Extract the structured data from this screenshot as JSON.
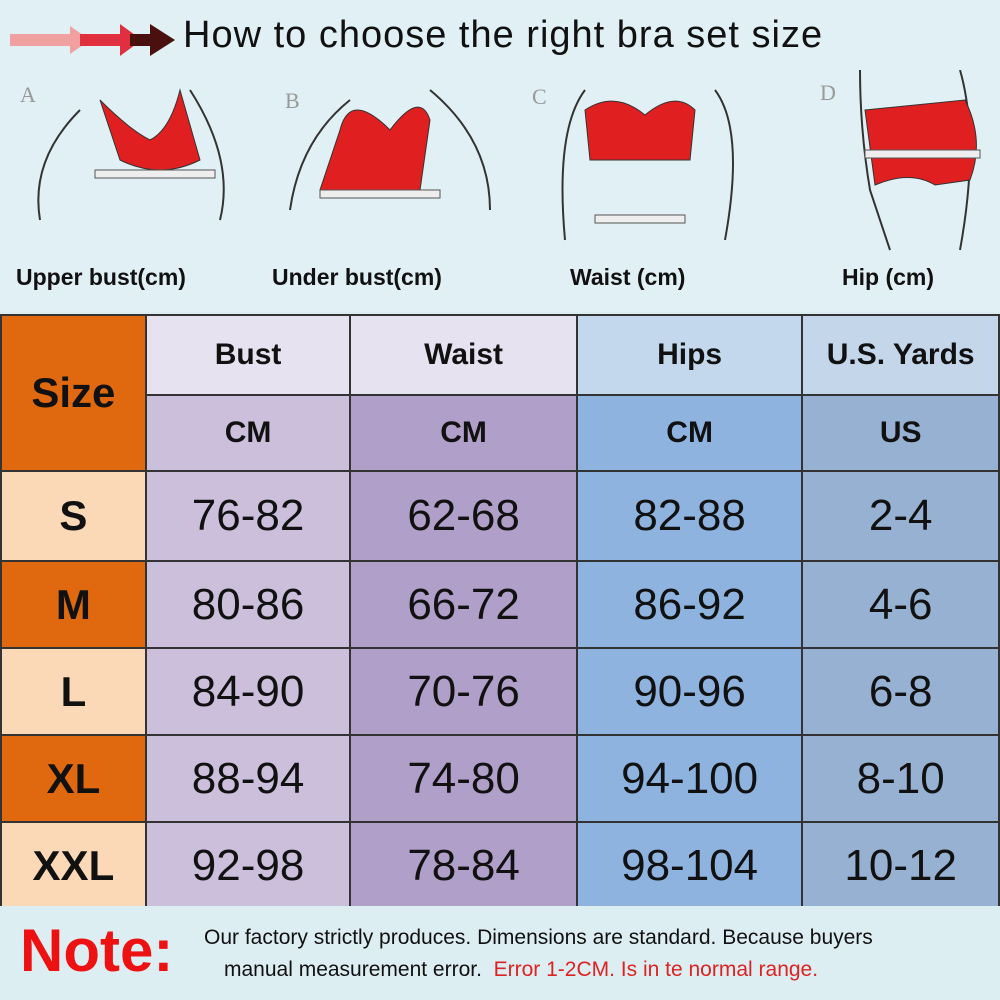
{
  "title": "How to choose the right bra set size",
  "measurements": [
    {
      "letter": "A",
      "label": "Upper bust(cm)"
    },
    {
      "letter": "B",
      "label": "Under bust(cm)"
    },
    {
      "letter": "C",
      "label": "Waist (cm)"
    },
    {
      "letter": "D",
      "label": "Hip (cm)"
    }
  ],
  "table": {
    "size_header": "Size",
    "columns": [
      {
        "name": "Bust",
        "unit": "CM"
      },
      {
        "name": "Waist",
        "unit": "CM"
      },
      {
        "name": "Hips",
        "unit": "CM"
      },
      {
        "name": "U.S. Yards",
        "unit": "US"
      }
    ],
    "rows": [
      {
        "size": "S",
        "values": [
          "76-82",
          "62-68",
          "82-88",
          "2-4"
        ]
      },
      {
        "size": "M",
        "values": [
          "80-86",
          "66-72",
          "86-92",
          "4-6"
        ]
      },
      {
        "size": "L",
        "values": [
          "84-90",
          "70-76",
          "90-96",
          "6-8"
        ]
      },
      {
        "size": "XL",
        "values": [
          "88-94",
          "74-80",
          "94-100",
          "8-10"
        ]
      },
      {
        "size": "XXL",
        "values": [
          "92-98",
          "78-84",
          "98-104",
          "10-12"
        ]
      }
    ]
  },
  "note": {
    "label": "Note:",
    "line1": "Our factory strictly produces.  Dimensions are standard.  Because buyers",
    "line2_black": "manual measurement error.",
    "line2_red": "Error 1-2CM.  Is in te normal range."
  },
  "colors": {
    "size_dark": "#e0690f",
    "size_light": "#fbd8b6",
    "bust_body": "#cbbfdc",
    "waist_body": "#b09fc8",
    "hips_body": "#8eb3df",
    "us_body": "#97b1d2",
    "header_light": "#e6e2ef",
    "note_red": "#ee1111",
    "garment_red": "#e02020"
  }
}
